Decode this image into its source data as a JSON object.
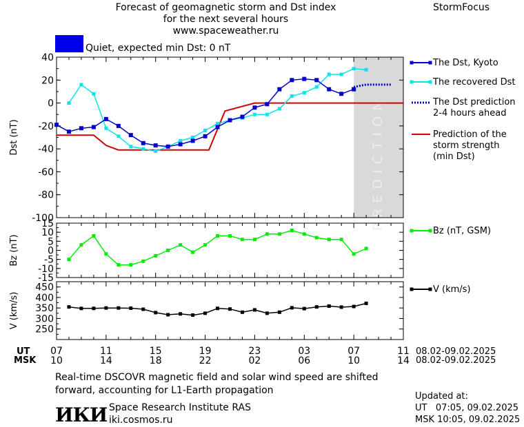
{
  "header": {
    "title_lines": [
      "Forecast of geomagnetic storm and Dst index",
      "for the next several hours",
      "www.spaceweather.ru"
    ],
    "brand": "StormFocus",
    "quiet_label": "Quiet, expected min Dst: 0 nT",
    "quiet_color": "#0000ee"
  },
  "legend": {
    "dst_kyoto": "The Dst, Kyoto",
    "dst_recovered": "The recovered Dst",
    "dst_prediction": [
      "The Dst prediction",
      "2-4 hours ahead"
    ],
    "storm_prediction": [
      "Prediction of the",
      "storm strength",
      "(min Dst)"
    ],
    "bz": "Bz (nT, GSM)",
    "v": "V (km/s)"
  },
  "x_axis": {
    "ut_label": "UT",
    "msk_label": "MSK",
    "ut_ticks": [
      "07",
      "11",
      "15",
      "19",
      "23",
      "03",
      "07",
      "11"
    ],
    "msk_ticks": [
      "10",
      "14",
      "18",
      "22",
      "02",
      "06",
      "10",
      "14"
    ],
    "ut_range": "08.02-09.02.2025",
    "msk_range": "08.02-09.02.2025"
  },
  "footer": {
    "note_lines": [
      "Real-time DSCOVR magnetic field and solar wind speed are shifted",
      "forward, accounting for L1-Earth propagation"
    ],
    "logo": "ИКИ",
    "institute": "Space Research Institute RAS",
    "site": "iki.cosmos.ru",
    "updated_label": "Updated at:",
    "updated_ut": "UT   07:05, 09.02.2025",
    "updated_msk": "MSK 10:05, 09.02.2025"
  },
  "chart_data": [
    {
      "type": "line",
      "ylabel": "Dst (nT)",
      "ylim": [
        -100,
        40
      ],
      "yticks": [
        40,
        20,
        0,
        -20,
        -40,
        -60,
        -80,
        -100
      ],
      "xlim_hours_ut": [
        7,
        35
      ],
      "prediction_label": "PREDICTION",
      "prediction_band_hours": [
        31,
        35
      ],
      "colors": {
        "kyoto": "#0000cc",
        "recovered": "#00e5ee",
        "prediction": "#0000cc",
        "storm": "#d00000"
      },
      "x": [
        7,
        8,
        9,
        10,
        11,
        12,
        13,
        14,
        15,
        16,
        17,
        18,
        19,
        20,
        21,
        22,
        23,
        24,
        25,
        26,
        27,
        28,
        29,
        30,
        31
      ],
      "series": [
        {
          "name": "The Dst, Kyoto",
          "values": [
            -19,
            -25,
            -22,
            -21,
            -14,
            -20,
            -28,
            -35,
            -37,
            -38,
            -36,
            -33,
            -29,
            -21,
            -15,
            -12,
            -4,
            -1,
            12,
            20,
            21,
            20,
            12,
            8,
            12
          ]
        },
        {
          "name": "The recovered Dst",
          "x": [
            8,
            9,
            10,
            11,
            12,
            13,
            14,
            15,
            16,
            17,
            18,
            19,
            20,
            21,
            22,
            23,
            24,
            25,
            26,
            27,
            28,
            29,
            30,
            31,
            32
          ],
          "values": [
            0,
            16,
            8,
            -22,
            -29,
            -38,
            -40,
            -42,
            -38,
            -33,
            -30,
            -24,
            -18,
            -15,
            -13,
            -10,
            -10,
            -5,
            6,
            9,
            14,
            25,
            25,
            30,
            29
          ]
        },
        {
          "name": "The Dst prediction 2-4 hours ahead",
          "x": [
            31,
            31.5,
            32,
            32.5,
            33,
            34
          ],
          "values": [
            14,
            15,
            16,
            16,
            16,
            16
          ]
        },
        {
          "name": "Prediction of the storm strength (min Dst)",
          "x": [
            7,
            10,
            11,
            12,
            14,
            19.3,
            20.6,
            23,
            25,
            35
          ],
          "values": [
            -28,
            -28,
            -37,
            -41,
            -41,
            -41,
            -7,
            0,
            0,
            0
          ]
        }
      ]
    },
    {
      "type": "line",
      "ylabel": "Bz (nT)",
      "ylim": [
        -15,
        15
      ],
      "yticks": [
        15,
        10,
        5,
        0,
        -5,
        -10,
        -15
      ],
      "color": "#00ee00",
      "x": [
        8,
        9,
        10,
        11,
        12,
        13,
        14,
        15,
        16,
        17,
        18,
        19,
        20,
        21,
        22,
        23,
        24,
        25,
        26,
        27,
        28,
        29,
        30,
        31,
        32
      ],
      "series": [
        {
          "name": "Bz (nT, GSM)",
          "values": [
            -5,
            3,
            8,
            -2,
            -8,
            -8,
            -6,
            -3,
            0,
            3,
            -1,
            3,
            8,
            8,
            6,
            6,
            9,
            9,
            11,
            9,
            7,
            6,
            6,
            -2,
            1
          ]
        }
      ]
    },
    {
      "type": "line",
      "ylabel": "V (km/s)",
      "ylim": [
        200,
        475
      ],
      "yticks": [
        450,
        400,
        350,
        300,
        250
      ],
      "color": "#000000",
      "x": [
        8,
        9,
        10,
        11,
        12,
        13,
        14,
        15,
        16,
        17,
        18,
        19,
        20,
        21,
        22,
        23,
        24,
        25,
        26,
        27,
        28,
        29,
        30,
        31,
        32
      ],
      "series": [
        {
          "name": "V (km/s)",
          "values": [
            355,
            348,
            348,
            350,
            350,
            349,
            344,
            328,
            318,
            322,
            316,
            325,
            348,
            345,
            330,
            341,
            325,
            330,
            351,
            347,
            355,
            359,
            354,
            357,
            372
          ]
        }
      ]
    }
  ]
}
